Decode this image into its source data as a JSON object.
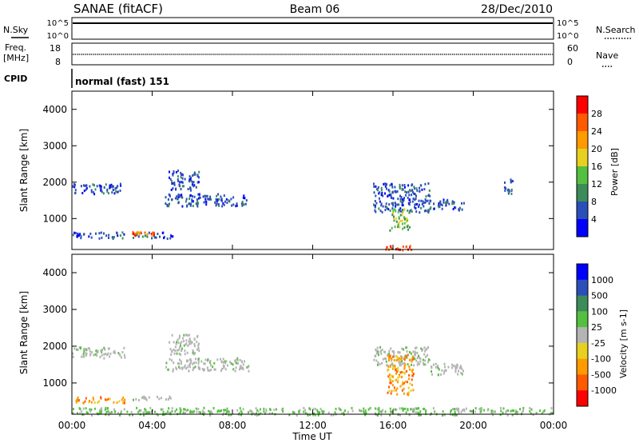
{
  "header": {
    "site": "SANAE (fitACF)",
    "beam": "Beam 06",
    "date": "28/Dec/2010"
  },
  "strips": {
    "nsky_label": "N.Sky",
    "nsearch_label": "N.Search",
    "nsky_ticks": [
      "10^5",
      "10^0"
    ],
    "nsearch_ticks": [
      "10^5",
      "10^0"
    ],
    "freq_label": "Freq.",
    "freq_unit": "[MHz]",
    "freq_ticks": [
      "18",
      "8"
    ],
    "nave_label": "Nave",
    "nave_ticks": [
      "60",
      "0"
    ],
    "cpid_label": "CPID",
    "cpid_value": "normal (fast) 151"
  },
  "x_axis": {
    "label": "Time UT",
    "ticks": [
      "00:00",
      "04:00",
      "08:00",
      "12:00",
      "16:00",
      "20:00",
      "00:00"
    ]
  },
  "colors": {
    "power": [
      "#0000ff",
      "#2a4fb8",
      "#3c8c5a",
      "#55c040",
      "#e8d020",
      "#ff9a00",
      "#ff5a00",
      "#ff0000"
    ],
    "velocity": [
      "#0000ff",
      "#2a4fb8",
      "#3c8c5a",
      "#55c040",
      "#b4b4b4",
      "#e8d020",
      "#ff9a00",
      "#ff5a00",
      "#ff0000"
    ]
  },
  "chart_data": [
    {
      "type": "heatmap",
      "title": "Power",
      "xlabel": "",
      "ylabel": "Slant Range [km]",
      "xlim": [
        0,
        24
      ],
      "ylim": [
        150,
        4500
      ],
      "y_ticks": [
        "1000",
        "2000",
        "3000",
        "4000"
      ],
      "colorbar": {
        "label": "Power [dB]",
        "ticks": [
          "4",
          "8",
          "12",
          "16",
          "20",
          "24",
          "28"
        ]
      },
      "regions": [
        {
          "t0": 0.0,
          "t1": 2.4,
          "r0": 1700,
          "r1": 2000,
          "value": "low"
        },
        {
          "t0": 0.0,
          "t1": 2.6,
          "r0": 480,
          "r1": 650,
          "value": "low"
        },
        {
          "t0": 3.0,
          "t1": 5.0,
          "r0": 480,
          "r1": 650,
          "value": "low"
        },
        {
          "t0": 3.0,
          "t1": 4.1,
          "r0": 560,
          "r1": 660,
          "value": "high"
        },
        {
          "t0": 4.6,
          "t1": 8.8,
          "r0": 1350,
          "r1": 1700,
          "value": "low"
        },
        {
          "t0": 4.8,
          "t1": 6.3,
          "r0": 1800,
          "r1": 2350,
          "value": "low"
        },
        {
          "t0": 15.0,
          "t1": 17.8,
          "r0": 1200,
          "r1": 2000,
          "value": "low"
        },
        {
          "t0": 15.8,
          "t1": 16.8,
          "r0": 700,
          "r1": 1300,
          "value": "mid"
        },
        {
          "t0": 17.8,
          "t1": 19.5,
          "r0": 1250,
          "r1": 1550,
          "value": "low"
        },
        {
          "t0": 21.5,
          "t1": 22.0,
          "r0": 1700,
          "r1": 2100,
          "value": "low"
        },
        {
          "t0": 15.6,
          "t1": 17.0,
          "r0": 150,
          "r1": 280,
          "value": "high"
        }
      ]
    },
    {
      "type": "heatmap",
      "title": "Velocity",
      "xlabel": "Time UT",
      "ylabel": "Slant Range [km]",
      "xlim": [
        0,
        24
      ],
      "ylim": [
        150,
        4500
      ],
      "y_ticks": [
        "1000",
        "2000",
        "3000",
        "4000"
      ],
      "colorbar": {
        "label": "Velocity [m s-1]",
        "ticks": [
          "1000",
          "500",
          "100",
          "25",
          "-25",
          "-100",
          "-500",
          "-1000"
        ]
      },
      "regions": [
        {
          "t0": 0.0,
          "t1": 2.6,
          "r0": 1700,
          "r1": 2000,
          "value": "near zero"
        },
        {
          "t0": 0.0,
          "t1": 2.6,
          "r0": 480,
          "r1": 650,
          "value": "negative"
        },
        {
          "t0": 3.0,
          "t1": 5.0,
          "r0": 560,
          "r1": 660,
          "value": "near zero"
        },
        {
          "t0": 4.6,
          "t1": 8.8,
          "r0": 1350,
          "r1": 1700,
          "value": "near zero"
        },
        {
          "t0": 4.8,
          "t1": 6.3,
          "r0": 1800,
          "r1": 2350,
          "value": "near zero"
        },
        {
          "t0": 15.0,
          "t1": 17.8,
          "r0": 1500,
          "r1": 2000,
          "value": "near zero"
        },
        {
          "t0": 15.7,
          "t1": 17.0,
          "r0": 700,
          "r1": 1800,
          "value": "negative"
        },
        {
          "t0": 17.8,
          "t1": 19.5,
          "r0": 1250,
          "r1": 1550,
          "value": "near zero"
        },
        {
          "t0": 0.0,
          "t1": 24.0,
          "r0": 150,
          "r1": 350,
          "value": "positive low"
        }
      ]
    }
  ]
}
